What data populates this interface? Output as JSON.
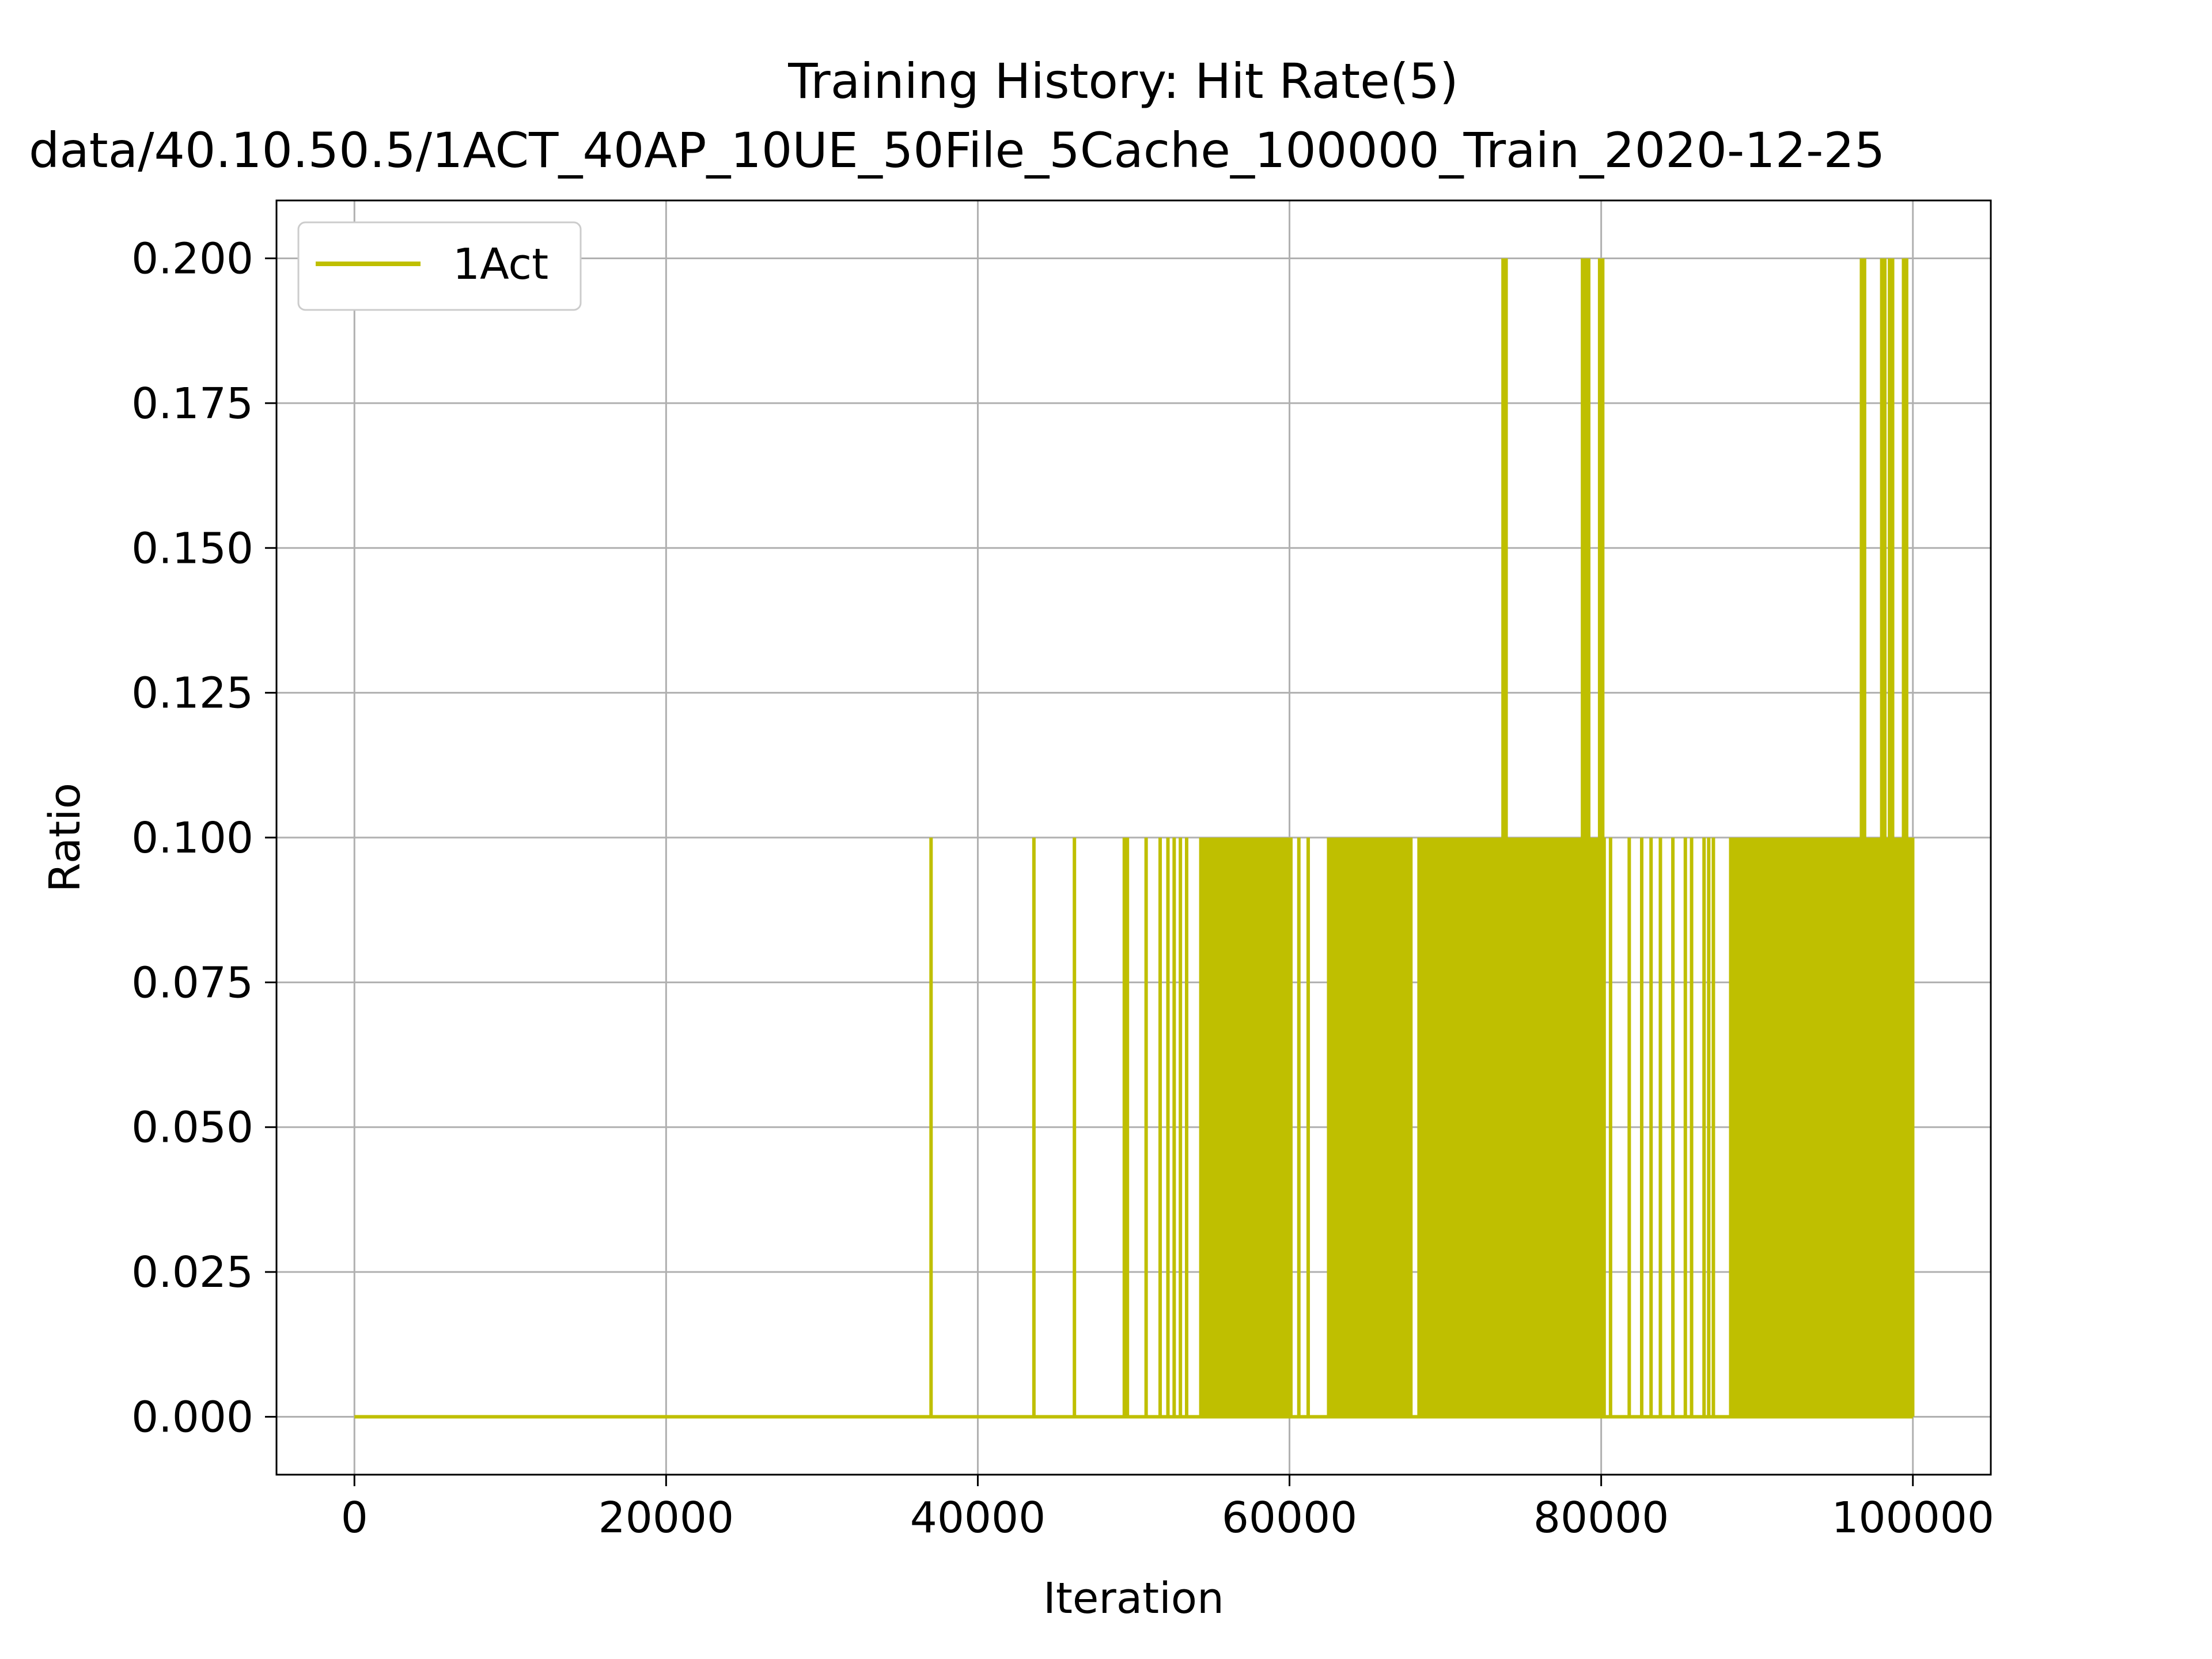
{
  "chart_data": {
    "type": "line",
    "title": "Training History: Hit Rate(5)",
    "subtitle": "data/40.10.50.5/1ACT_40AP_10UE_50File_5Cache_100000_Train_2020-12-25",
    "xlabel": "Iteration",
    "ylabel": "Ratio",
    "xlim": [
      -5000,
      105000
    ],
    "ylim": [
      -0.01,
      0.21
    ],
    "xticks": [
      0,
      20000,
      40000,
      60000,
      80000,
      100000
    ],
    "xtick_labels": [
      "0",
      "20000",
      "40000",
      "60000",
      "80000",
      "100000"
    ],
    "yticks": [
      0,
      0.025,
      0.05,
      0.075,
      0.1,
      0.125,
      0.15,
      0.175,
      0.2
    ],
    "ytick_labels": [
      "0.000",
      "0.025",
      "0.050",
      "0.075",
      "0.100",
      "0.125",
      "0.150",
      "0.175",
      "0.200"
    ],
    "grid": true,
    "legend": {
      "position": "top-left"
    },
    "series": [
      {
        "name": "1Act",
        "color": "#bfbf00",
        "baseline": 0,
        "x_range": [
          0,
          100000
        ],
        "spikes_0_1": [
          37000,
          43600,
          46200,
          49400,
          49600,
          50800,
          51700,
          52200,
          52600,
          53000,
          53400,
          60600,
          61200,
          80600,
          81800,
          82600,
          83200,
          83800,
          84600,
          85400,
          85800,
          86600,
          86900,
          87200
        ],
        "dense_regions_0_1": [
          [
            54200,
            60200
          ],
          [
            62400,
            67900
          ],
          [
            68200,
            80300
          ],
          [
            88200,
            100100
          ]
        ],
        "spikes_0_2": [
          73700,
          73900,
          78800,
          79000,
          79200,
          79900,
          80100,
          96700,
          96900,
          98000,
          98200,
          98500,
          98700,
          99400,
          99600
        ]
      }
    ]
  }
}
